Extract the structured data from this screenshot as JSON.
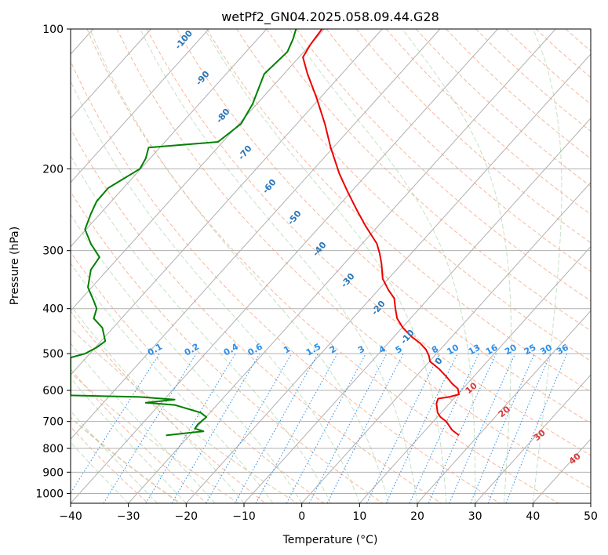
{
  "chart_data": {
    "type": "line",
    "subtype": "skew-t log-p",
    "title": "wetPf2_GN04.2025.058.09.44.G28",
    "xlabel": "Temperature (°C)",
    "ylabel": "Pressure (hPa)",
    "xlim": [
      -40,
      50
    ],
    "ylim": [
      1050,
      100
    ],
    "y_scale": "log",
    "grid": true,
    "x_ticks": [
      -40,
      -30,
      -20,
      -10,
      0,
      10,
      20,
      30,
      40,
      50
    ],
    "y_ticks": [
      100,
      200,
      300,
      400,
      500,
      600,
      700,
      800,
      900,
      1000
    ],
    "series": [
      {
        "color": "#ee0000",
        "kind": "temperature",
        "points": [
          [
            27.2,
            750
          ],
          [
            26.0,
            730
          ],
          [
            25.0,
            700
          ],
          [
            24.0,
            685
          ],
          [
            23.5,
            670
          ],
          [
            23.3,
            640
          ],
          [
            23.6,
            625
          ],
          [
            25.5,
            620
          ],
          [
            27.2,
            612
          ],
          [
            27.0,
            595
          ],
          [
            26.0,
            580
          ],
          [
            25.0,
            560
          ],
          [
            23.8,
            540
          ],
          [
            22.2,
            520
          ],
          [
            22.0,
            505
          ],
          [
            21.5,
            490
          ],
          [
            20.5,
            475
          ],
          [
            19.0,
            460
          ],
          [
            17.5,
            440
          ],
          [
            16.5,
            420
          ],
          [
            16.2,
            400
          ],
          [
            16.0,
            380
          ],
          [
            15.0,
            365
          ],
          [
            14.0,
            345
          ],
          [
            13.8,
            320
          ],
          [
            13.5,
            305
          ],
          [
            13.0,
            290
          ],
          [
            11.0,
            265
          ],
          [
            9.5,
            245
          ],
          [
            8.0,
            225
          ],
          [
            6.5,
            205
          ],
          [
            5.0,
            180
          ],
          [
            4.0,
            160
          ],
          [
            2.5,
            140
          ],
          [
            1.0,
            125
          ],
          [
            0.2,
            115
          ],
          [
            1.5,
            108
          ],
          [
            3.5,
            100
          ]
        ]
      },
      {
        "color": "#008000",
        "kind": "dewpoint",
        "points": [
          [
            -23.5,
            750
          ],
          [
            -17.0,
            735
          ],
          [
            -18.5,
            725
          ],
          [
            -18.0,
            710
          ],
          [
            -16.5,
            685
          ],
          [
            -17.5,
            670
          ],
          [
            -22.0,
            645
          ],
          [
            -27.0,
            638
          ],
          [
            -22.0,
            628
          ],
          [
            -28.0,
            620
          ],
          [
            -40.0,
            615
          ],
          [
            -40.0,
            510
          ],
          [
            -37.5,
            500
          ],
          [
            -35.5,
            485
          ],
          [
            -34.0,
            470
          ],
          [
            -34.5,
            440
          ],
          [
            -36.0,
            420
          ],
          [
            -35.5,
            400
          ],
          [
            -36.0,
            385
          ],
          [
            -37.0,
            360
          ],
          [
            -36.5,
            330
          ],
          [
            -35.0,
            310
          ],
          [
            -36.5,
            290
          ],
          [
            -37.5,
            270
          ],
          [
            -36.5,
            250
          ],
          [
            -35.5,
            235
          ],
          [
            -33.5,
            220
          ],
          [
            -28.0,
            200
          ],
          [
            -27.0,
            190
          ],
          [
            -26.5,
            180
          ],
          [
            -14.5,
            175
          ],
          [
            -10.5,
            160
          ],
          [
            -8.5,
            145
          ],
          [
            -6.5,
            125
          ],
          [
            -2.5,
            112
          ],
          [
            -1.5,
            105
          ],
          [
            -1.0,
            100
          ]
        ]
      }
    ],
    "mixing_ratio_labels": [
      "0.1",
      "0.2",
      "0.4",
      "0.6",
      "1",
      "1.5",
      "2",
      "3",
      "4",
      "5",
      "8",
      "10",
      "13",
      "16",
      "20",
      "25",
      "30",
      "36"
    ],
    "theta_labels": [
      "-100",
      "-90",
      "-80",
      "-70",
      "-60",
      "-50",
      "-40",
      "-30",
      "-20",
      "-10",
      "0"
    ],
    "red_labels": [
      "10",
      "20",
      "30",
      "40"
    ]
  }
}
